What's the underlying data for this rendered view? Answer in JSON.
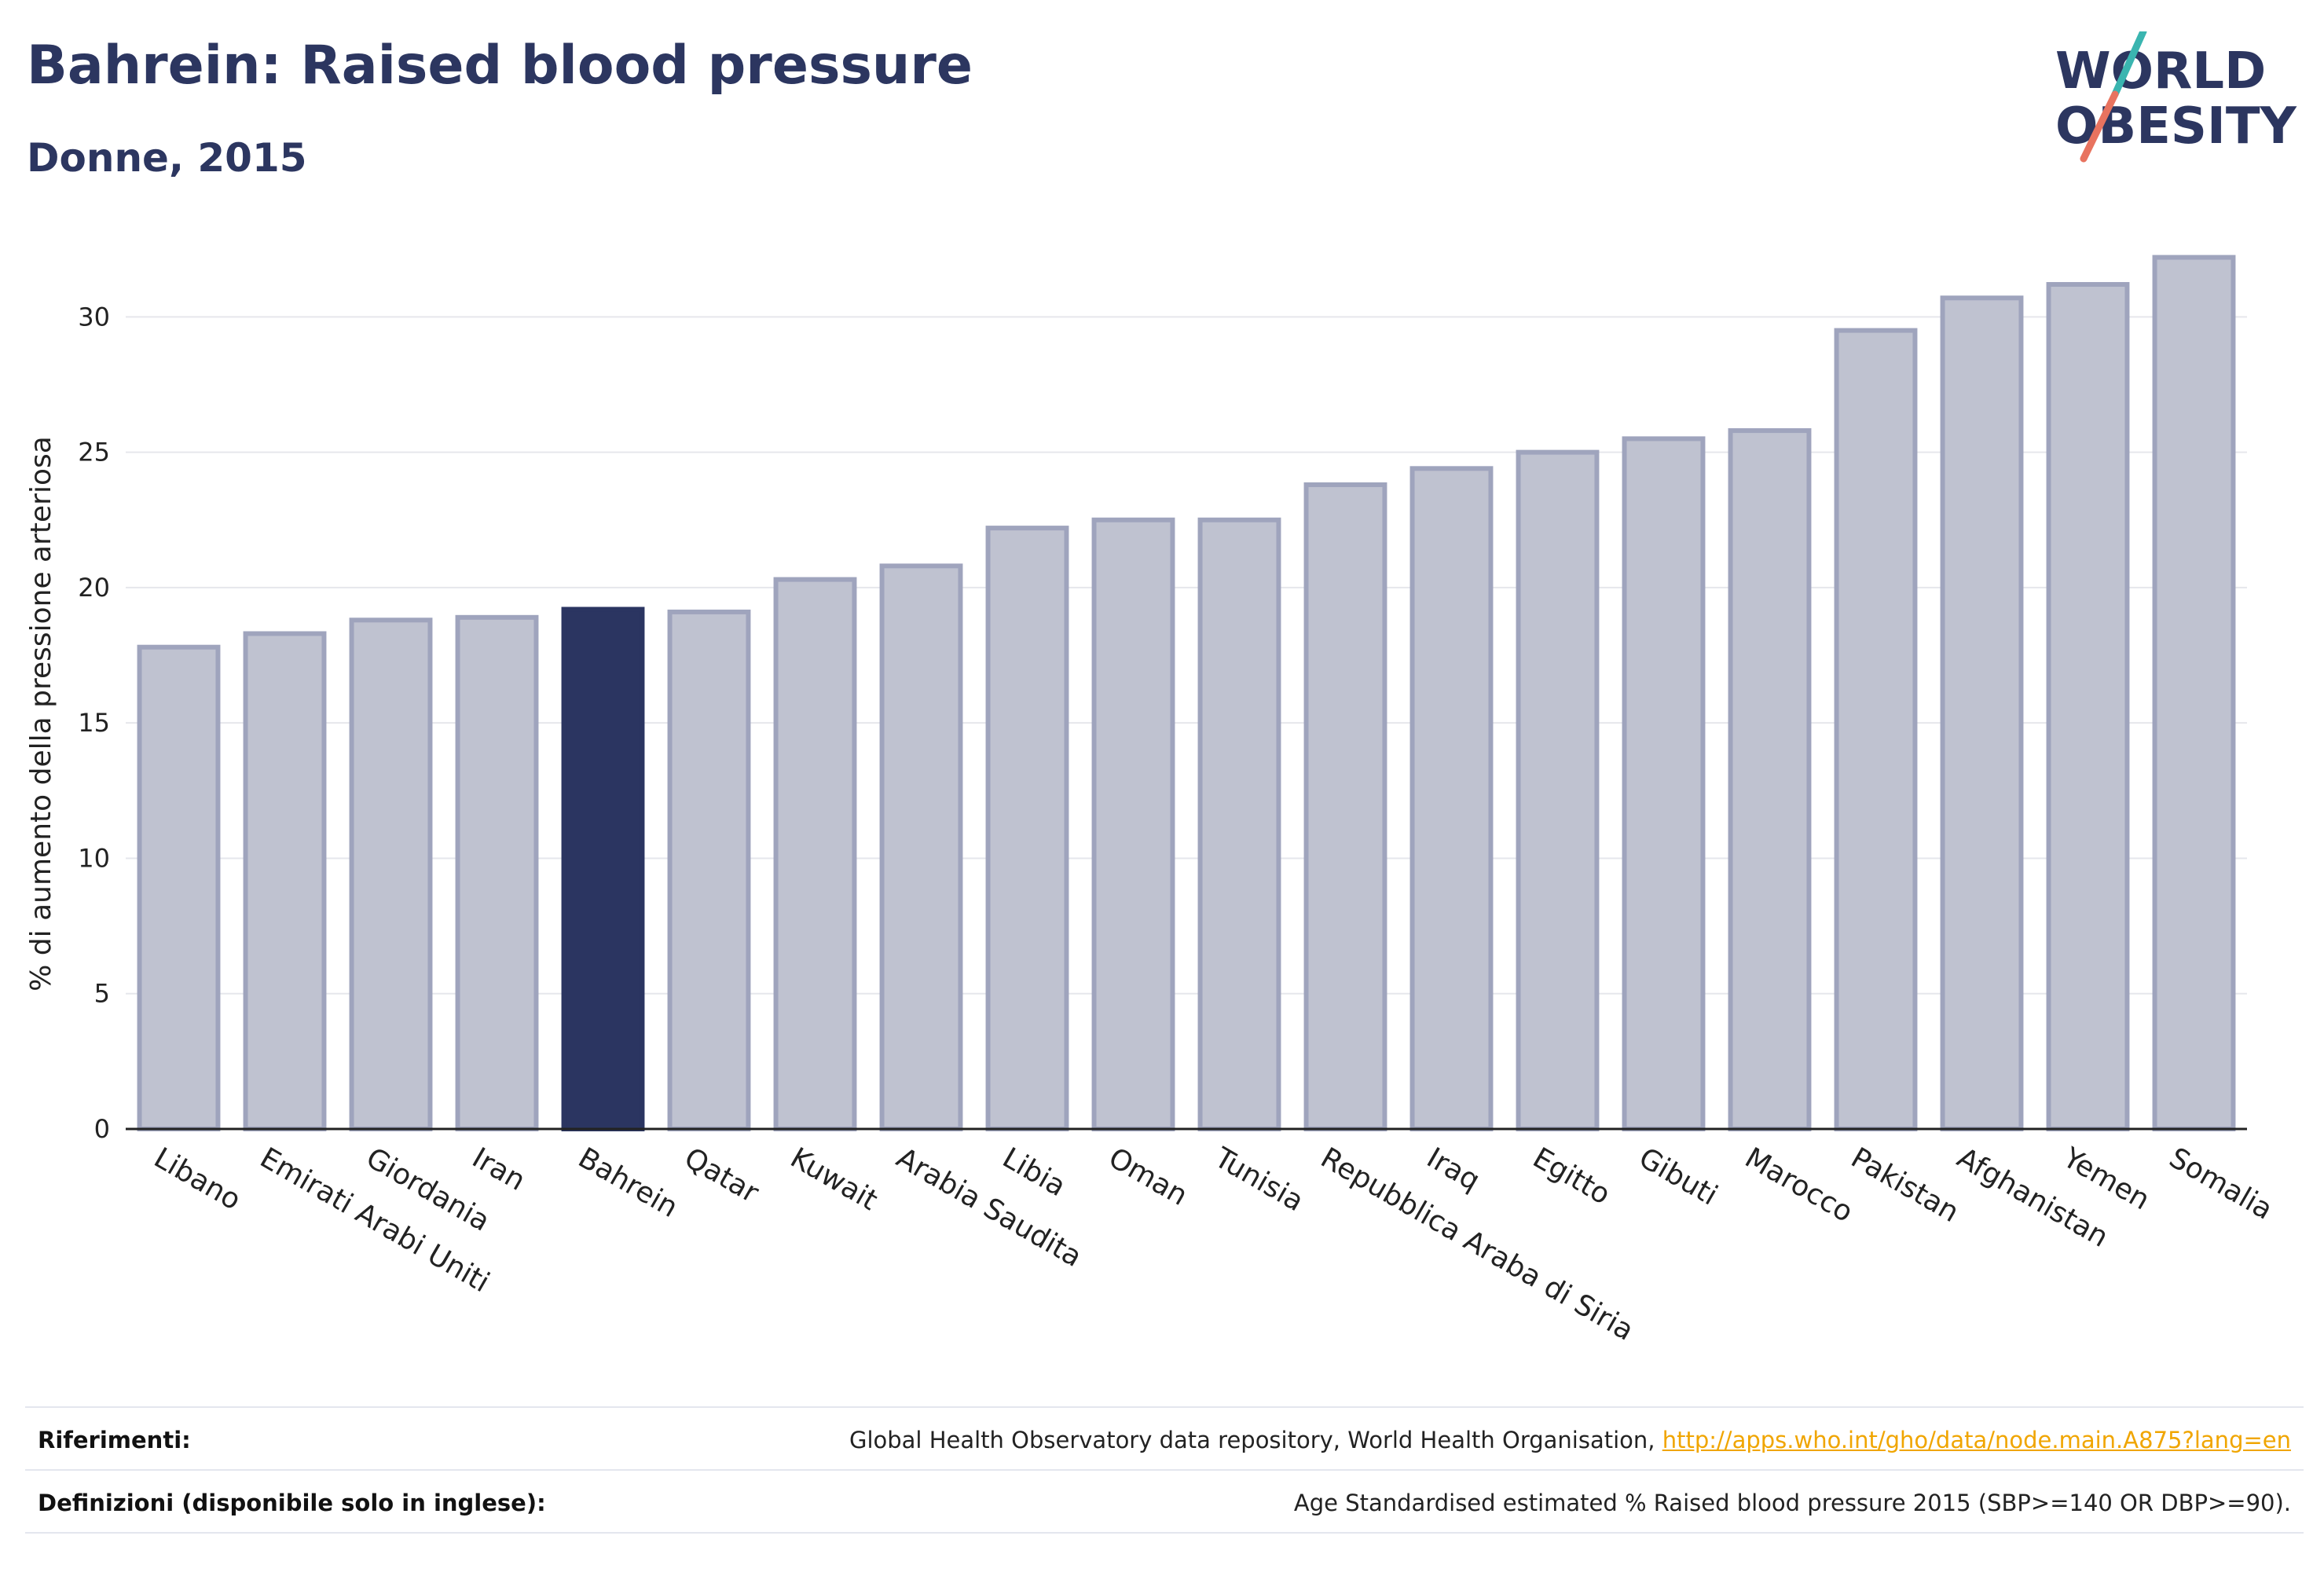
{
  "header": {
    "title": "Bahrein: Raised blood pressure",
    "subtitle": "Donne, 2015"
  },
  "logo": {
    "line1": "WORLD",
    "line2": "OBESITY"
  },
  "colors": {
    "highlight": "#2b3561",
    "bar_fill": "#bfc2d0",
    "bar_stroke": "#9fa4bd",
    "title": "#2c3660",
    "link": "#f0a500",
    "logo_teal": "#3ab5b0",
    "logo_coral": "#e8735f"
  },
  "chart_data": {
    "type": "bar",
    "title": "Bahrein: Raised blood pressure",
    "subtitle": "Donne, 2015",
    "ylabel": "% di aumento della pressione arteriosa",
    "xlabel": "",
    "ylim": [
      0,
      33
    ],
    "yticks": [
      0,
      5,
      10,
      15,
      20,
      25,
      30
    ],
    "grid": true,
    "highlight": "Bahrein",
    "categories": [
      "Libano",
      "Emirati Arabi Uniti",
      "Giordania",
      "Iran",
      "Bahrein",
      "Qatar",
      "Kuwait",
      "Arabia Saudita",
      "Libia",
      "Oman",
      "Tunisia",
      "Repubblica Araba di Siria",
      "Iraq",
      "Egitto",
      "Gibuti",
      "Marocco",
      "Pakistan",
      "Afghanistan",
      "Yemen",
      "Somalia"
    ],
    "values": [
      17.8,
      18.3,
      18.8,
      18.9,
      19.2,
      19.1,
      20.3,
      20.8,
      22.2,
      22.5,
      22.5,
      23.8,
      24.4,
      25.0,
      25.5,
      25.8,
      29.5,
      30.7,
      31.2,
      32.2
    ]
  },
  "footer": {
    "references_label": "Riferimenti:",
    "references_text": "Global Health Observatory data repository, World Health Organisation, ",
    "references_link": "http://apps.who.int/gho/data/node.main.A875?lang=en",
    "definitions_label": "Definizioni (disponibile solo in inglese):",
    "definitions_text": "Age Standardised estimated % Raised blood pressure 2015 (SBP>=140 OR DBP>=90)."
  }
}
